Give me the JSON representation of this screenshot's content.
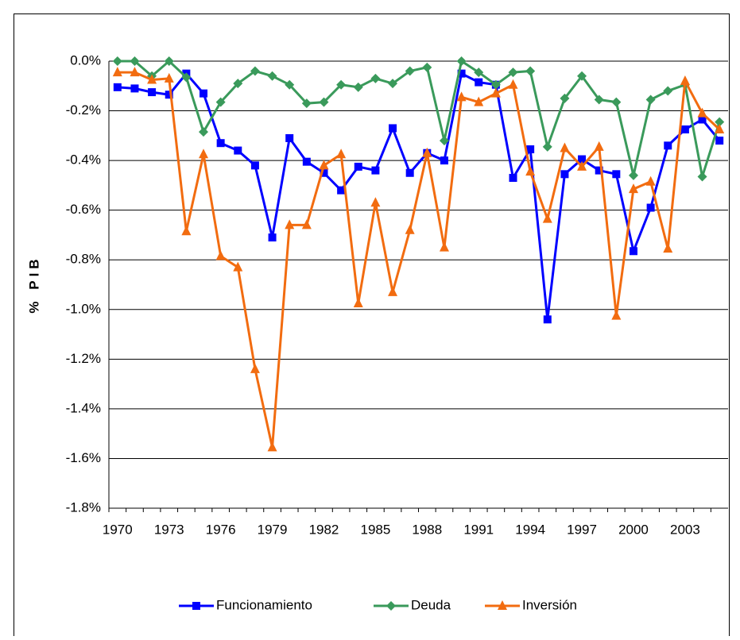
{
  "chart_data": {
    "type": "line",
    "y_label": "% PIB",
    "categories": [
      1970,
      null,
      null,
      1973,
      null,
      null,
      1976,
      null,
      null,
      1979,
      null,
      null,
      1982,
      null,
      null,
      1985,
      null,
      null,
      1988,
      null,
      null,
      1991,
      null,
      null,
      1994,
      null,
      null,
      1997,
      null,
      null,
      2000,
      null,
      null,
      2003,
      null,
      null
    ],
    "series": [
      {
        "name": "Funcionamiento",
        "color": "#0000ff",
        "marker": "square",
        "values": [
          -0.105,
          -0.11,
          -0.125,
          -0.135,
          -0.05,
          -0.13,
          -0.33,
          -0.36,
          -0.42,
          -0.71,
          -0.31,
          -0.405,
          -0.45,
          -0.52,
          -0.425,
          -0.44,
          -0.27,
          -0.45,
          -0.37,
          -0.4,
          -0.05,
          -0.085,
          -0.095,
          -0.47,
          -0.355,
          -1.04,
          -0.455,
          -0.395,
          -0.44,
          -0.455,
          -0.765,
          -0.59,
          -0.34,
          -0.275,
          -0.235,
          -0.32
        ]
      },
      {
        "name": "Deuda",
        "color": "#3a9a5b",
        "marker": "diamond",
        "values": [
          0.0,
          0.0,
          -0.06,
          0.0,
          -0.065,
          -0.285,
          -0.165,
          -0.09,
          -0.04,
          -0.06,
          -0.095,
          -0.17,
          -0.165,
          -0.095,
          -0.105,
          -0.07,
          -0.09,
          -0.04,
          -0.025,
          -0.32,
          0.0,
          -0.045,
          -0.095,
          -0.045,
          -0.04,
          -0.345,
          -0.15,
          -0.06,
          -0.155,
          -0.165,
          -0.46,
          -0.155,
          -0.12,
          -0.095,
          -0.465,
          -0.245
        ]
      },
      {
        "name": "Inversión",
        "color": "#f26c10",
        "marker": "triangle",
        "values": [
          -0.045,
          -0.045,
          -0.075,
          -0.07,
          -0.685,
          -0.375,
          -0.785,
          -0.83,
          -1.24,
          -1.555,
          -0.66,
          -0.66,
          -0.42,
          -0.375,
          -0.975,
          -0.57,
          -0.93,
          -0.68,
          -0.37,
          -0.75,
          -0.145,
          -0.165,
          -0.13,
          -0.095,
          -0.445,
          -0.635,
          -0.35,
          -0.425,
          -0.345,
          -1.025,
          -0.515,
          -0.485,
          -0.755,
          -0.08,
          -0.21,
          -0.275
        ]
      }
    ],
    "ylim": [
      -1.8,
      0
    ],
    "yticks": [
      {
        "value": 0,
        "label": "0.0%"
      },
      {
        "value": -0.2,
        "label": "-0.2%"
      },
      {
        "value": -0.4,
        "label": "-0.4%"
      },
      {
        "value": -0.6,
        "label": "-0.6%"
      },
      {
        "value": -0.8,
        "label": "-0.8%"
      },
      {
        "value": -1.0,
        "label": "-1.0%"
      },
      {
        "value": -1.2,
        "label": "-1.2%"
      },
      {
        "value": -1.4,
        "label": "-1.4%"
      },
      {
        "value": -1.6,
        "label": "-1.6%"
      },
      {
        "value": -1.8,
        "label": "-1.8%"
      }
    ],
    "grid": true,
    "legend": "bottom"
  }
}
